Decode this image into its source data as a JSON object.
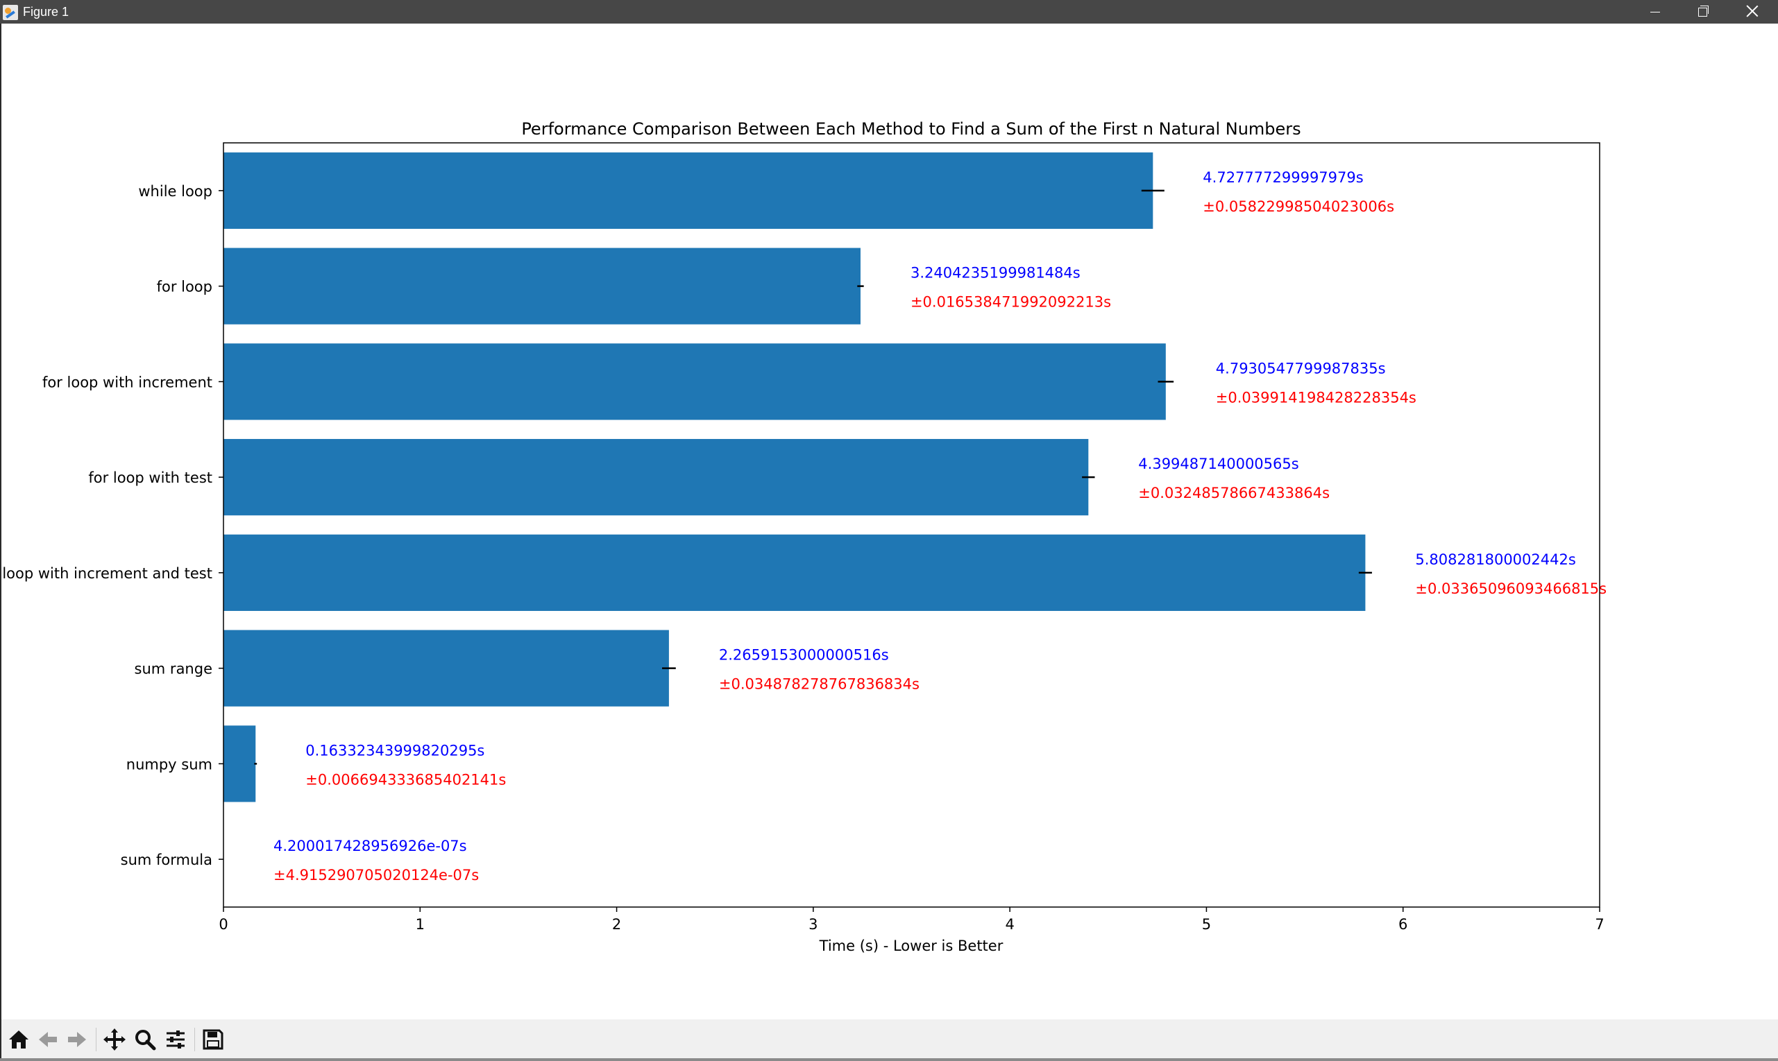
{
  "window": {
    "title": "Figure 1",
    "controls": {
      "minimize": "minimize",
      "maximize": "restore",
      "close": "close"
    }
  },
  "toolbar": {
    "buttons": [
      {
        "name": "home-icon",
        "label": "Home"
      },
      {
        "name": "back-icon",
        "label": "Back"
      },
      {
        "name": "forward-icon",
        "label": "Forward"
      },
      {
        "name": "pan-icon",
        "label": "Pan"
      },
      {
        "name": "zoom-icon",
        "label": "Zoom"
      },
      {
        "name": "configure-subplots-icon",
        "label": "Configure subplots"
      },
      {
        "name": "save-icon",
        "label": "Save"
      }
    ]
  },
  "colors": {
    "bar": "#1f77b4",
    "value_label": "#0000ff",
    "error_label": "#ff0000",
    "error_bar": "#000000"
  },
  "chart_data": {
    "type": "bar",
    "orientation": "horizontal",
    "title": "Performance Comparison Between Each Method to Find a Sum of the First n Natural Numbers",
    "xlabel": "Time (s) - Lower is Better",
    "ylabel": "",
    "xlim": [
      0,
      7
    ],
    "xticks": [
      0,
      1,
      2,
      3,
      4,
      5,
      6,
      7
    ],
    "grid": false,
    "categories": [
      "while loop",
      "for loop",
      "for loop with increment",
      "for loop with test",
      "for loop with increment and test",
      "sum range",
      "numpy sum",
      "sum formula"
    ],
    "values": [
      4.727777299997979,
      3.2404235199981484,
      4.7930547799987835,
      4.399487140000565,
      5.808281800002442,
      2.2659153000000516,
      0.16332343999820295,
      4.200017428956926e-07
    ],
    "errors": [
      0.05822998504023006,
      0.016538471992092213,
      0.039914198428228354,
      0.03248578667433864,
      0.03365096093466815,
      0.034878278767836834,
      0.006694333685402141,
      4.915290705020124e-07
    ],
    "value_labels": [
      "4.727777299997979s",
      "3.2404235199981484s",
      "4.7930547799987835s",
      "4.399487140000565s",
      "5.808281800002442s",
      "2.2659153000000516s",
      "0.16332343999820295s",
      "4.200017428956926e-07s"
    ],
    "error_labels": [
      "±0.05822998504023006s",
      "±0.016538471992092213s",
      "±0.039914198428228354s",
      "±0.03248578667433864s",
      "±0.03365096093466815s",
      "±0.034878278767836834s",
      "±0.006694333685402141s",
      "±4.915290705020124e-07s"
    ]
  }
}
